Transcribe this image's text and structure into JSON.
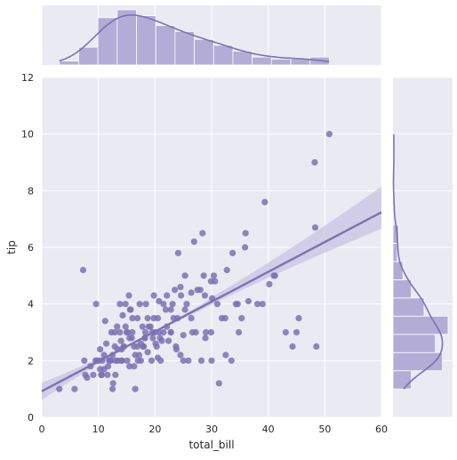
{
  "chart_data": {
    "type": "scatter",
    "title": "",
    "xlabel": "total_bill",
    "ylabel": "tip",
    "xlim": [
      0,
      60
    ],
    "ylim": [
      0,
      12
    ],
    "x_ticks": [
      0,
      10,
      20,
      30,
      40,
      50,
      60
    ],
    "y_ticks": [
      0,
      2,
      4,
      6,
      8,
      10,
      12
    ],
    "grid": true,
    "legend": "none",
    "colors": {
      "background": "#eaeaf2",
      "grid": "#ffffff",
      "mark": "#7d71b4",
      "hist_fill": "#b3acd6",
      "hist_edge": "#ffffff",
      "band": "#c8c3e2"
    },
    "series": [
      {
        "x": [
          3.1,
          5.8,
          7.3,
          7.5,
          7.7,
          8.6,
          9.1,
          9.6,
          10.1,
          10.3,
          10.3,
          10.6,
          11.0,
          11.2,
          11.4,
          11.6,
          12.0,
          12.3,
          12.5,
          12.6,
          12.9,
          13.0,
          13.3,
          13.4,
          13.8,
          14.0,
          14.1,
          14.3,
          14.5,
          14.8,
          15.0,
          15.1,
          15.4,
          15.5,
          15.7,
          16.0,
          16.3,
          16.5,
          16.9,
          17.3,
          17.5,
          17.8,
          18.0,
          18.3,
          18.4,
          18.7,
          19.4,
          19.5,
          19.8,
          20.1,
          20.3,
          20.5,
          20.7,
          20.9,
          21.0,
          21.5,
          22.1,
          22.4,
          22.8,
          23.1,
          23.3,
          23.7,
          24.1,
          24.5,
          24.6,
          25.0,
          25.3,
          25.6,
          25.9,
          26.4,
          26.9,
          27.2,
          28.0,
          28.2,
          28.4,
          28.6,
          28.9,
          29.0,
          29.9,
          30.1,
          30.4,
          31.0,
          31.3,
          32.4,
          32.7,
          33.7,
          34.3,
          34.8,
          35.3,
          38.1,
          39.4,
          40.2,
          41.2,
          43.1,
          44.3,
          45.4,
          48.2,
          48.3,
          50.8,
          12.9,
          15.2,
          17.9,
          19.8,
          22.8,
          18.2,
          16.5,
          14.8,
          11.7,
          13.4,
          20.7,
          24.0,
          26.6,
          21.2,
          18.7,
          16.3,
          13.0,
          10.5,
          9.8,
          15.6,
          17.5,
          20.5,
          22.1,
          25.3,
          27.5,
          29.9,
          31.8,
          34.6,
          36.5,
          16.9,
          14.2,
          12.2,
          19.2,
          23.5,
          28.8,
          33.5,
          35.9,
          21.9,
          24.5,
          18.9,
          15.9,
          13.8,
          11.9,
          10.7,
          17.2,
          19.6,
          22.8,
          26.4,
          30.6,
          14.5,
          16.0,
          18.2,
          21.5,
          23.8,
          8.0,
          9.5,
          11.0,
          12.5,
          14.0,
          15.5,
          17.0,
          20.0,
          25.0,
          30.0,
          32.5,
          36.0,
          39.0,
          41.0,
          45.0,
          48.5
        ],
        "y": [
          1.0,
          1.0,
          5.2,
          2.0,
          1.5,
          1.8,
          1.5,
          4.0,
          2.0,
          2.4,
          1.7,
          1.5,
          2.2,
          3.4,
          2.6,
          1.5,
          2.0,
          3.0,
          1.0,
          1.2,
          2.5,
          2.0,
          3.2,
          2.0,
          4.0,
          2.7,
          2.4,
          3.6,
          2.5,
          4.0,
          3.0,
          2.0,
          4.3,
          2.8,
          3.8,
          3.0,
          2.5,
          1.0,
          3.5,
          4.0,
          2.0,
          3.2,
          2.5,
          3.0,
          4.0,
          3.5,
          2.0,
          3.0,
          4.3,
          2.6,
          2.5,
          3.5,
          4.1,
          2.8,
          2.0,
          4.0,
          3.2,
          2.7,
          3.0,
          4.0,
          3.5,
          2.5,
          5.8,
          2.2,
          4.3,
          2.0,
          5.0,
          4.0,
          2.0,
          3.5,
          6.2,
          3.0,
          4.5,
          2.0,
          6.5,
          5.0,
          2.8,
          3.0,
          4.8,
          4.2,
          5.0,
          4.0,
          1.2,
          3.5,
          5.2,
          5.8,
          4.0,
          3.0,
          3.5,
          4.0,
          7.6,
          4.7,
          5.0,
          3.0,
          2.5,
          3.5,
          9.0,
          6.7,
          10.0,
          3.0,
          3.0,
          2.5,
          3.5,
          3.8,
          2.8,
          2.2,
          3.2,
          1.8,
          2.4,
          3.0,
          3.5,
          3.0,
          2.7,
          2.3,
          1.8,
          1.5,
          1.5,
          2.0,
          3.8,
          2.6,
          2.1,
          4.3,
          3.8,
          4.5,
          3.0,
          3.5,
          4.0,
          4.1,
          2.5,
          2.0,
          2.0,
          3.2,
          4.5,
          4.3,
          2.0,
          6.0,
          3.8,
          4.6,
          3.2,
          2.8,
          3.0,
          2.0,
          2.0,
          2.2,
          2.8,
          3.0,
          4.4,
          4.8,
          2.5,
          3.5,
          2.8,
          3.0,
          2.4,
          1.4,
          2.0,
          1.7,
          2.2,
          2.0,
          1.8,
          2.0,
          3.0,
          2.9,
          2.0,
          2.2,
          6.5,
          4.0,
          5.0,
          3.0,
          2.5
        ]
      }
    ],
    "regression": {
      "x": [
        0,
        60
      ],
      "y": [
        0.92,
        7.24
      ],
      "ci_lower": [
        0.62,
        6.65
      ],
      "ci_upper": [
        1.22,
        8.15
      ]
    }
  }
}
